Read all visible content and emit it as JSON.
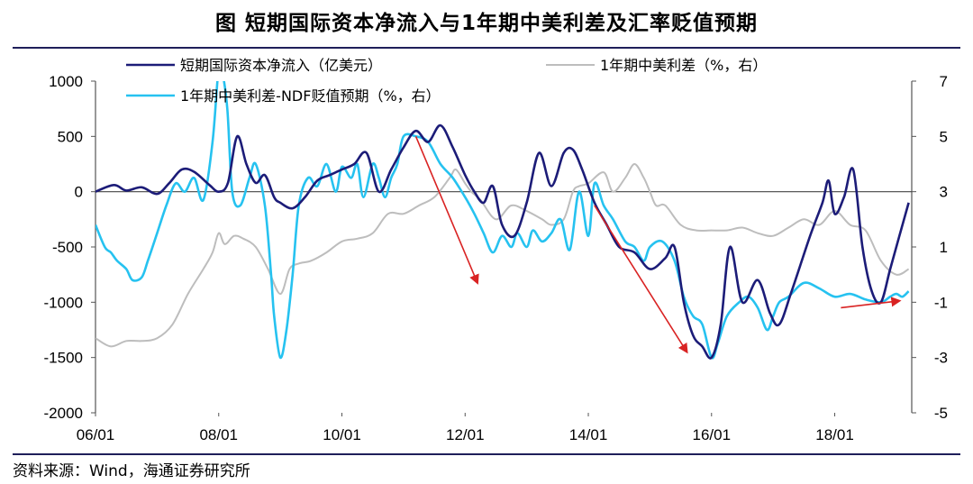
{
  "title": "图  短期国际资本净流入与1年期中美利差及汇率贬值预期",
  "source": "资料来源：Wind，海通证券研究所",
  "colors": {
    "capital": "#1c1c78",
    "spread": "#bdbdbd",
    "ndf": "#26c2f0",
    "arrow": "#d92323",
    "axis": "#555555"
  },
  "chart_data": {
    "type": "line",
    "title": "短期国际资本净流入与1年期中美利差及汇率贬值预期",
    "x_tick_labels": [
      "06/01",
      "08/01",
      "10/01",
      "12/01",
      "14/01",
      "16/01",
      "18/01"
    ],
    "x_range": [
      2006.0,
      2019.25
    ],
    "y_left": {
      "ylim": [
        -2000,
        1000
      ],
      "ticks": [
        "1000",
        "500",
        "0",
        "-500",
        "-1000",
        "-1500",
        "-2000"
      ]
    },
    "y_right": {
      "ylim": [
        -5,
        7
      ],
      "ticks": [
        "7",
        "5",
        "3",
        "1",
        "-1",
        "-3",
        "-5"
      ]
    },
    "zero_line": 0,
    "series": [
      {
        "name": "短期国际资本净流入（亿美元）",
        "axis": "left",
        "x": [
          2006.0,
          2006.3,
          2006.5,
          2006.75,
          2007.0,
          2007.2,
          2007.4,
          2007.6,
          2007.85,
          2008.0,
          2008.15,
          2008.3,
          2008.45,
          2008.6,
          2008.75,
          2008.9,
          2009.0,
          2009.2,
          2009.4,
          2009.6,
          2009.8,
          2010.0,
          2010.2,
          2010.4,
          2010.6,
          2010.8,
          2011.0,
          2011.2,
          2011.4,
          2011.6,
          2011.8,
          2012.0,
          2012.15,
          2012.3,
          2012.45,
          2012.6,
          2012.8,
          2013.0,
          2013.2,
          2013.4,
          2013.6,
          2013.75,
          2013.9,
          2014.1,
          2014.3,
          2014.5,
          2014.75,
          2015.0,
          2015.25,
          2015.4,
          2015.55,
          2015.7,
          2015.85,
          2016.0,
          2016.15,
          2016.3,
          2016.5,
          2016.75,
          2016.95,
          2017.1,
          2017.3,
          2017.6,
          2017.8,
          2017.9,
          2018.0,
          2018.15,
          2018.3,
          2018.45,
          2018.6,
          2018.75,
          2018.9,
          2019.05,
          2019.2
        ],
        "values": [
          0,
          60,
          10,
          40,
          -20,
          80,
          200,
          180,
          60,
          0,
          80,
          500,
          250,
          80,
          150,
          -50,
          -100,
          -150,
          -50,
          100,
          150,
          200,
          250,
          350,
          0,
          200,
          400,
          550,
          450,
          600,
          400,
          150,
          0,
          -100,
          50,
          -300,
          -400,
          -100,
          350,
          50,
          350,
          380,
          200,
          -100,
          -300,
          -500,
          -550,
          -700,
          -600,
          -500,
          -1000,
          -1300,
          -1400,
          -1500,
          -1200,
          -500,
          -1000,
          -800,
          -1100,
          -1200,
          -900,
          -400,
          -100,
          100,
          -200,
          -50,
          200,
          -500,
          -900,
          -1000,
          -700,
          -400,
          -100
        ]
      },
      {
        "name": "1年期中美利差（%，右）",
        "axis": "right",
        "x": [
          2006.0,
          2006.25,
          2006.5,
          2006.75,
          2007.0,
          2007.25,
          2007.5,
          2007.75,
          2007.9,
          2008.0,
          2008.1,
          2008.25,
          2008.4,
          2008.6,
          2008.8,
          2009.0,
          2009.15,
          2009.3,
          2009.5,
          2009.75,
          2010.0,
          2010.25,
          2010.5,
          2010.75,
          2011.0,
          2011.25,
          2011.5,
          2011.75,
          2011.85,
          2012.0,
          2012.1,
          2012.25,
          2012.5,
          2012.75,
          2013.0,
          2013.25,
          2013.4,
          2013.6,
          2013.75,
          2013.85,
          2014.0,
          2014.25,
          2014.4,
          2014.6,
          2014.75,
          2014.9,
          2015.0,
          2015.1,
          2015.25,
          2015.5,
          2015.75,
          2016.0,
          2016.25,
          2016.5,
          2016.75,
          2017.0,
          2017.25,
          2017.5,
          2017.75,
          2018.0,
          2018.25,
          2018.5,
          2018.75,
          2019.0,
          2019.2
        ],
        "values": [
          -2.3,
          -2.6,
          -2.4,
          -2.4,
          -2.3,
          -1.8,
          -0.7,
          0.2,
          0.8,
          1.5,
          1.1,
          1.4,
          1.3,
          1.0,
          0.2,
          -0.7,
          0.2,
          0.4,
          0.5,
          0.8,
          1.2,
          1.3,
          1.5,
          2.2,
          2.2,
          2.5,
          2.8,
          3.5,
          3.8,
          3.3,
          3.0,
          2.7,
          2.0,
          2.5,
          2.3,
          2.0,
          1.8,
          2.0,
          3.0,
          3.2,
          3.3,
          3.7,
          3.0,
          3.5,
          4.0,
          3.5,
          3.0,
          2.5,
          2.5,
          1.8,
          1.6,
          1.6,
          1.6,
          1.7,
          1.5,
          1.4,
          1.7,
          2.0,
          1.8,
          2.3,
          1.8,
          1.6,
          0.5,
          0.0,
          0.2
        ]
      },
      {
        "name": "1年期中美利差-NDF贬值预期（%，右）",
        "axis": "right",
        "x": [
          2006.0,
          2006.15,
          2006.25,
          2006.35,
          2006.5,
          2006.6,
          2006.75,
          2006.85,
          2007.0,
          2007.15,
          2007.3,
          2007.45,
          2007.6,
          2007.75,
          2007.9,
          2008.0,
          2008.06,
          2008.14,
          2008.22,
          2008.35,
          2008.5,
          2008.6,
          2008.75,
          2008.85,
          2008.9,
          2009.0,
          2009.1,
          2009.2,
          2009.3,
          2009.45,
          2009.6,
          2009.75,
          2009.9,
          2010.0,
          2010.15,
          2010.25,
          2010.35,
          2010.5,
          2010.6,
          2010.7,
          2010.8,
          2010.9,
          2011.0,
          2011.2,
          2011.4,
          2011.6,
          2011.8,
          2012.0,
          2012.15,
          2012.3,
          2012.45,
          2012.6,
          2012.75,
          2012.85,
          2013.0,
          2013.1,
          2013.25,
          2013.4,
          2013.55,
          2013.7,
          2013.85,
          2014.0,
          2014.1,
          2014.25,
          2014.4,
          2014.6,
          2014.75,
          2014.9,
          2015.0,
          2015.2,
          2015.4,
          2015.55,
          2015.7,
          2015.85,
          2016.0,
          2016.1,
          2016.25,
          2016.45,
          2016.6,
          2016.75,
          2016.9,
          2017.0,
          2017.1,
          2017.25,
          2017.5,
          2017.75,
          2018.0,
          2018.25,
          2018.5,
          2018.75,
          2018.9,
          2019.0,
          2019.1,
          2019.2
        ],
        "values": [
          1.8,
          1.0,
          0.8,
          0.5,
          0.2,
          -0.2,
          -0.1,
          0.5,
          1.5,
          2.5,
          3.3,
          3.0,
          3.5,
          2.7,
          4.8,
          7.5,
          7.3,
          6.0,
          3.0,
          2.5,
          3.5,
          4.0,
          2.5,
          0.0,
          -1.5,
          -3.0,
          -2.0,
          0.0,
          2.5,
          3.5,
          3.2,
          4.0,
          3.0,
          3.9,
          3.5,
          4.0,
          2.8,
          4.0,
          3.5,
          2.8,
          3.5,
          4.0,
          5.0,
          5.0,
          4.8,
          4.0,
          3.5,
          2.8,
          2.2,
          1.5,
          0.8,
          1.4,
          1.0,
          1.5,
          1.0,
          1.6,
          1.2,
          1.5,
          2.0,
          0.9,
          3.0,
          1.4,
          3.3,
          2.5,
          2.0,
          1.2,
          1.0,
          0.5,
          1.0,
          1.2,
          0.5,
          -0.8,
          -1.5,
          -1.8,
          -3.0,
          -2.5,
          -1.5,
          -1.0,
          -0.8,
          -1.2,
          -2.0,
          -1.5,
          -1.0,
          -0.8,
          -0.3,
          -0.5,
          -0.8,
          -0.7,
          -0.9,
          -1.0,
          -0.8,
          -0.7,
          -0.8,
          -0.6
        ]
      }
    ],
    "annotation_arrows": [
      {
        "from": [
          2011.2,
          5.0
        ],
        "to": [
          2012.2,
          -0.3
        ]
      },
      {
        "from": [
          2014.1,
          2.5
        ],
        "to": [
          2015.6,
          -2.8
        ]
      },
      {
        "from": [
          2018.1,
          -1.2
        ],
        "to": [
          2019.05,
          -0.95
        ]
      }
    ],
    "legend": [
      {
        "label": "短期国际资本净流入（亿美元）"
      },
      {
        "label": "1年期中美利差（%，右）"
      },
      {
        "label": "1年期中美利差-NDF贬值预期（%，右）"
      }
    ]
  }
}
